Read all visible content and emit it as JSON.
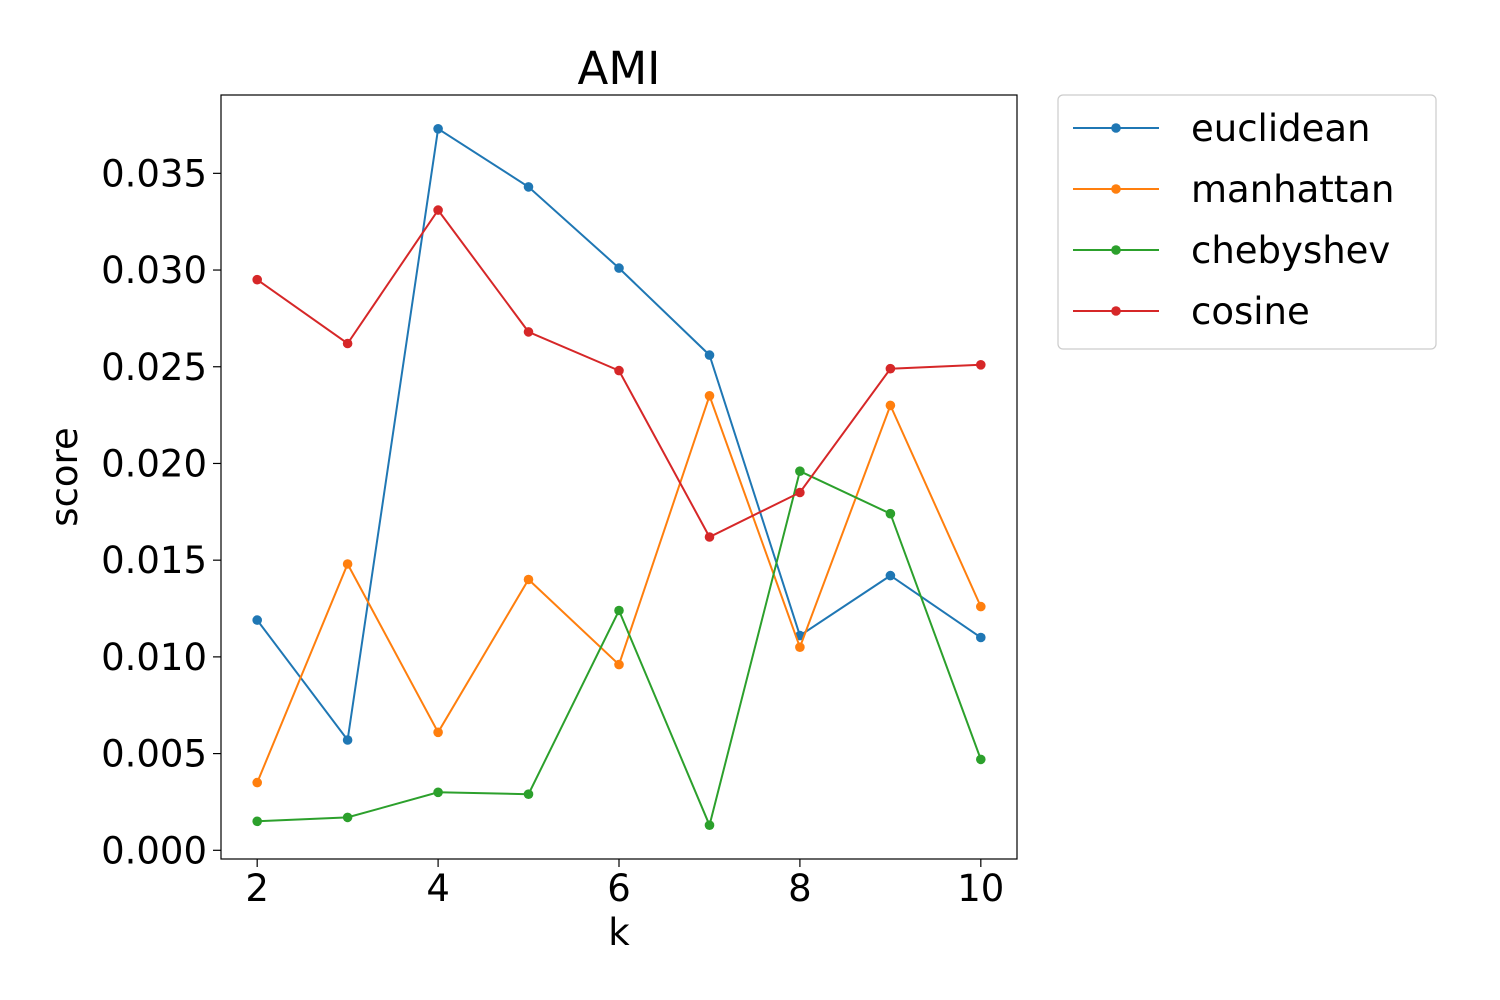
{
  "chart_data": {
    "type": "line",
    "title": "AMI",
    "xlabel": "k",
    "ylabel": "score",
    "x": [
      2,
      3,
      4,
      5,
      6,
      7,
      8,
      9,
      10
    ],
    "xlim": [
      1.6,
      10.4
    ],
    "ylim": [
      -0.00045,
      0.03905
    ],
    "xticks": [
      2,
      4,
      6,
      8,
      10
    ],
    "yticks": [
      0.0,
      0.005,
      0.01,
      0.015,
      0.02,
      0.025,
      0.03,
      0.035
    ],
    "xtick_labels": [
      "2",
      "4",
      "6",
      "8",
      "10"
    ],
    "ytick_labels": [
      "0.000",
      "0.005",
      "0.010",
      "0.015",
      "0.020",
      "0.025",
      "0.030",
      "0.035"
    ],
    "grid": false,
    "legend_position": "outside-top-right",
    "series": [
      {
        "name": "euclidean",
        "color": "#1f77b4",
        "values": [
          0.0119,
          0.0057,
          0.0373,
          0.0343,
          0.0301,
          0.0256,
          0.0111,
          0.0142,
          0.011
        ]
      },
      {
        "name": "manhattan",
        "color": "#ff7f0e",
        "values": [
          0.0035,
          0.0148,
          0.0061,
          0.014,
          0.0096,
          0.0235,
          0.0105,
          0.023,
          0.0126
        ]
      },
      {
        "name": "chebyshev",
        "color": "#2ca02c",
        "values": [
          0.0015,
          0.0017,
          0.003,
          0.0029,
          0.0124,
          0.0013,
          0.0196,
          0.0174,
          0.0047
        ]
      },
      {
        "name": "cosine",
        "color": "#d62728",
        "values": [
          0.0295,
          0.0262,
          0.0331,
          0.0268,
          0.0248,
          0.0162,
          0.0185,
          0.0249,
          0.0251
        ]
      }
    ]
  }
}
